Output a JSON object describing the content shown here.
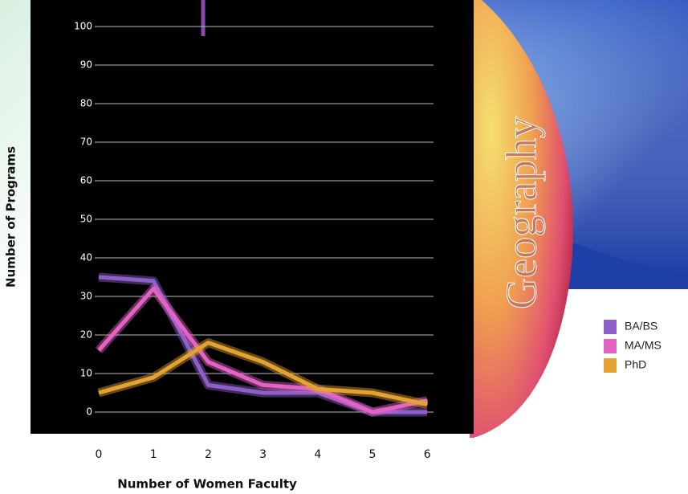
{
  "chart_data": {
    "type": "line",
    "xlabel": "Number of Women Faculty",
    "ylabel": "Number of Programs",
    "annotation": "Geography",
    "categories": [
      "0",
      "1",
      "2",
      "3",
      "4",
      "5",
      "6"
    ],
    "series": [
      {
        "name": "BA/BS",
        "color": "#8e5fc8",
        "values": [
          35,
          34,
          7,
          5,
          5,
          0,
          0
        ]
      },
      {
        "name": "MA/MS",
        "color": "#e263c4",
        "values": [
          16,
          32,
          13,
          7,
          6,
          0,
          3
        ]
      },
      {
        "name": "PhD",
        "color": "#e3a233",
        "values": [
          5,
          9,
          18,
          13,
          6,
          5,
          2
        ]
      }
    ],
    "ylim": [
      0,
      100
    ],
    "yticks": [
      0,
      10,
      20,
      30,
      40,
      50,
      60,
      70,
      80,
      90,
      100
    ],
    "grid": true
  }
}
